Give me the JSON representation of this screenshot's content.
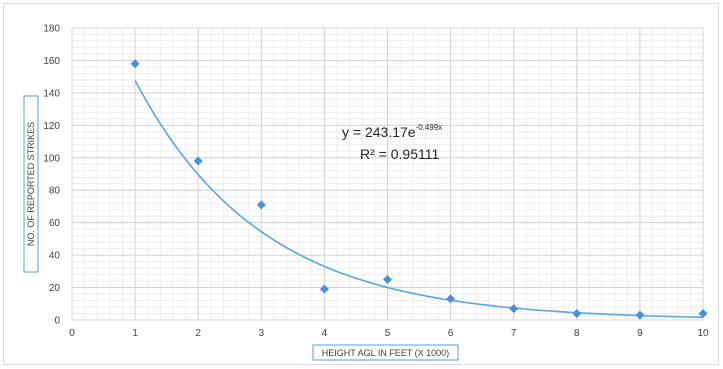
{
  "chart_data": {
    "type": "scatter",
    "title": "",
    "xlabel": "HEIGHT AGL IN FEET (X 1000)",
    "ylabel": "NO. OF REPORTED STRIKES",
    "xlim": [
      0,
      10
    ],
    "ylim": [
      0,
      180
    ],
    "x_ticks": [
      "0",
      "1",
      "2",
      "3",
      "4",
      "5",
      "6",
      "7",
      "8",
      "9",
      "10"
    ],
    "y_ticks": [
      "0",
      "20",
      "40",
      "60",
      "80",
      "100",
      "120",
      "140",
      "160",
      "180"
    ],
    "grid": true,
    "series": [
      {
        "x": [
          1,
          2,
          3,
          4,
          5,
          6,
          7,
          8,
          9,
          10
        ],
        "y": [
          158,
          98,
          71,
          19,
          25,
          13,
          7,
          4,
          3,
          4
        ],
        "color": "#4a90d9"
      }
    ],
    "trendline": {
      "type": "exponential",
      "a": 243.17,
      "b": -0.499,
      "x_range": [
        1,
        10
      ],
      "color": "#5aa7dc"
    },
    "equation_text": {
      "prefix": "y = 243.17e",
      "exponent": "-0.499x",
      "r2": "R² = 0.95111"
    }
  }
}
